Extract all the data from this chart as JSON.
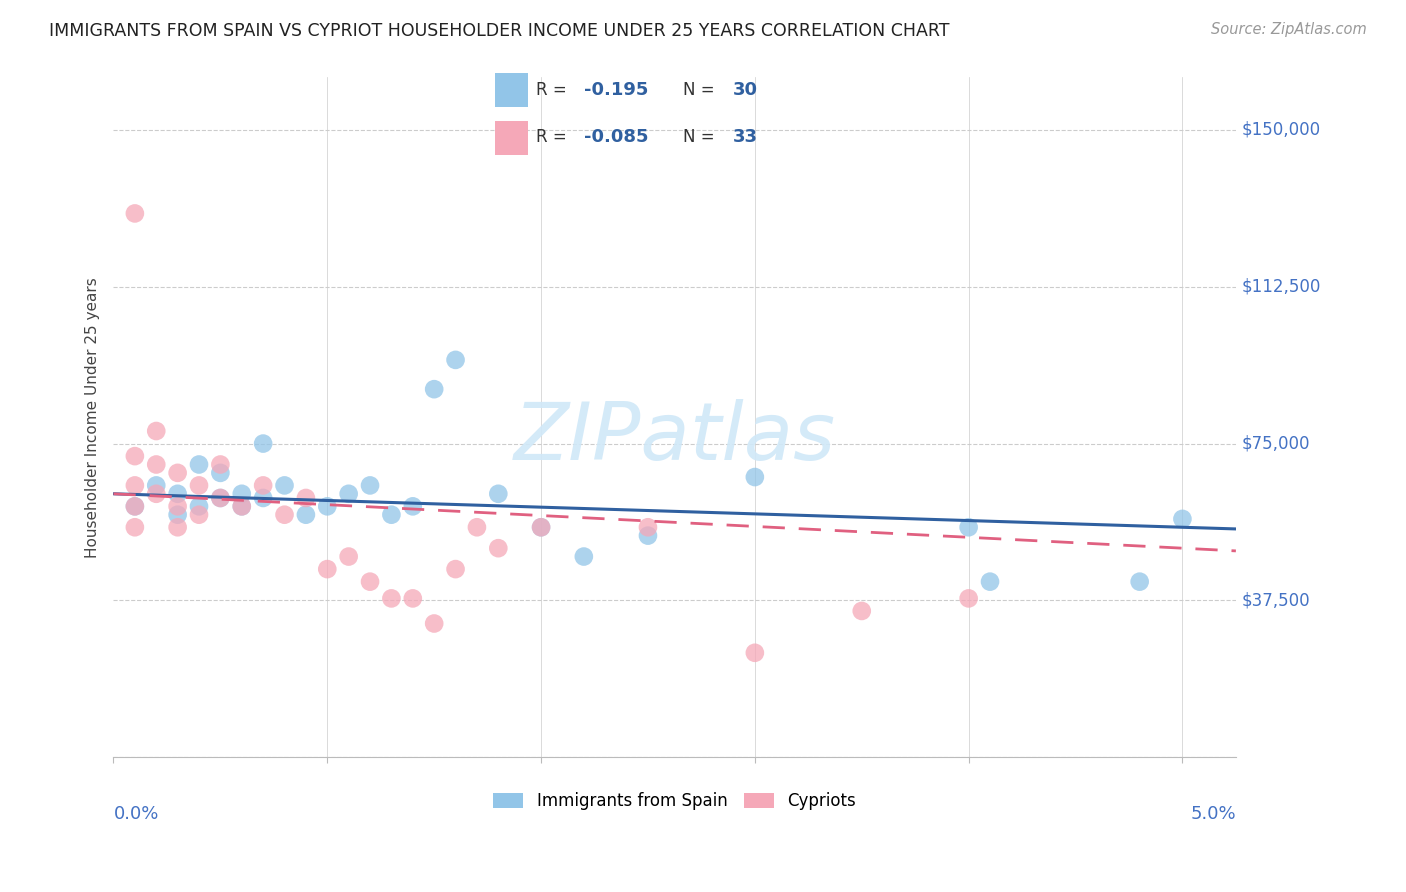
{
  "title": "IMMIGRANTS FROM SPAIN VS CYPRIOT HOUSEHOLDER INCOME UNDER 25 YEARS CORRELATION CHART",
  "source": "Source: ZipAtlas.com",
  "ylabel": "Householder Income Under 25 years",
  "blue_color": "#92C5E8",
  "pink_color": "#F5A8B8",
  "blue_line_color": "#3060A0",
  "pink_line_color": "#E06080",
  "watermark_color": "#D0E8F8",
  "spain_x": [
    0.001,
    0.002,
    0.003,
    0.003,
    0.004,
    0.004,
    0.005,
    0.005,
    0.006,
    0.006,
    0.007,
    0.007,
    0.008,
    0.009,
    0.01,
    0.011,
    0.012,
    0.013,
    0.014,
    0.015,
    0.016,
    0.018,
    0.02,
    0.022,
    0.025,
    0.03,
    0.04,
    0.041,
    0.048,
    0.05
  ],
  "spain_y": [
    60000,
    65000,
    63000,
    58000,
    70000,
    60000,
    68000,
    62000,
    63000,
    60000,
    75000,
    62000,
    65000,
    58000,
    60000,
    63000,
    65000,
    58000,
    60000,
    88000,
    95000,
    63000,
    55000,
    48000,
    53000,
    67000,
    55000,
    42000,
    42000,
    57000
  ],
  "cypriot_x": [
    0.001,
    0.001,
    0.001,
    0.001,
    0.002,
    0.002,
    0.002,
    0.003,
    0.003,
    0.003,
    0.004,
    0.004,
    0.005,
    0.005,
    0.006,
    0.007,
    0.008,
    0.009,
    0.01,
    0.011,
    0.012,
    0.013,
    0.014,
    0.015,
    0.016,
    0.017,
    0.018,
    0.02,
    0.025,
    0.03,
    0.035,
    0.04,
    0.001
  ],
  "cypriot_y": [
    72000,
    65000,
    60000,
    55000,
    78000,
    70000,
    63000,
    68000,
    60000,
    55000,
    65000,
    58000,
    70000,
    62000,
    60000,
    65000,
    58000,
    62000,
    45000,
    48000,
    42000,
    38000,
    38000,
    32000,
    45000,
    55000,
    50000,
    55000,
    55000,
    25000,
    35000,
    38000,
    130000
  ],
  "yticks": [
    0,
    37500,
    75000,
    112500,
    150000
  ],
  "xlim": [
    0.0,
    0.0525
  ],
  "ylim": [
    0,
    162500
  ],
  "blue_r": "-0.195",
  "blue_n": "30",
  "pink_r": "-0.085",
  "pink_n": "33"
}
